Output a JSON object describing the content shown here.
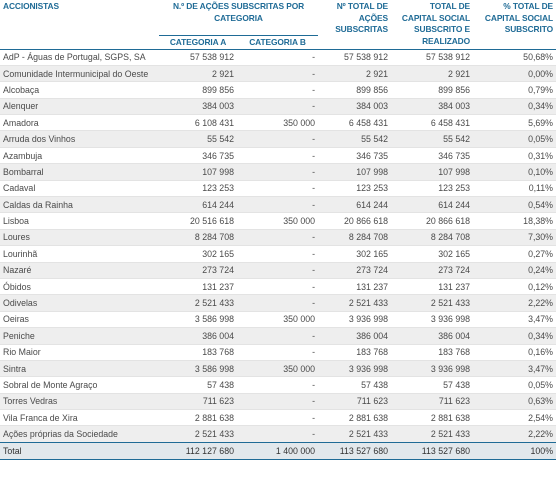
{
  "header": {
    "col_shareholders": "ACCIONISTAS",
    "col_shares_group": "N.º DE AÇÕES SUBSCRITAS POR CATEGORIA",
    "col_cat_a": "CATEGORIA A",
    "col_cat_b": "CATEGORIA B",
    "col_total_shares": "Nº TOTAL DE AÇÕES SUBSCRITAS",
    "col_total_capital": "TOTAL DE CAPITAL SOCIAL SUBSCRITO E REALIZADO",
    "col_percent": "% TOTAL DE CAPITAL SOCIAL SUBSCRITO"
  },
  "rows": [
    {
      "name": "AdP - Águas de Portugal, SGPS, SA",
      "cat_a": "57 538 912",
      "cat_b": "-",
      "total_shares": "57 538 912",
      "capital": "57 538 912",
      "percent": "50,68%"
    },
    {
      "name": "Comunidade Intermunicipal do Oeste",
      "cat_a": "2 921",
      "cat_b": "-",
      "total_shares": "2 921",
      "capital": "2 921",
      "percent": "0,00%"
    },
    {
      "name": "Alcobaça",
      "cat_a": "899 856",
      "cat_b": "-",
      "total_shares": "899 856",
      "capital": "899 856",
      "percent": "0,79%"
    },
    {
      "name": "Alenquer",
      "cat_a": "384 003",
      "cat_b": "-",
      "total_shares": "384 003",
      "capital": "384 003",
      "percent": "0,34%"
    },
    {
      "name": "Amadora",
      "cat_a": "6 108 431",
      "cat_b": "350 000",
      "total_shares": "6 458 431",
      "capital": "6 458 431",
      "percent": "5,69%"
    },
    {
      "name": "Arruda dos Vinhos",
      "cat_a": "55 542",
      "cat_b": "-",
      "total_shares": "55 542",
      "capital": "55 542",
      "percent": "0,05%"
    },
    {
      "name": "Azambuja",
      "cat_a": "346 735",
      "cat_b": "-",
      "total_shares": "346 735",
      "capital": "346 735",
      "percent": "0,31%"
    },
    {
      "name": "Bombarral",
      "cat_a": "107 998",
      "cat_b": "-",
      "total_shares": "107 998",
      "capital": "107 998",
      "percent": "0,10%"
    },
    {
      "name": "Cadaval",
      "cat_a": "123 253",
      "cat_b": "-",
      "total_shares": "123 253",
      "capital": "123 253",
      "percent": "0,11%"
    },
    {
      "name": "Caldas da Rainha",
      "cat_a": "614 244",
      "cat_b": "-",
      "total_shares": "614 244",
      "capital": "614 244",
      "percent": "0,54%"
    },
    {
      "name": "Lisboa",
      "cat_a": "20 516 618",
      "cat_b": "350 000",
      "total_shares": "20 866 618",
      "capital": "20 866 618",
      "percent": "18,38%"
    },
    {
      "name": "Loures",
      "cat_a": "8 284 708",
      "cat_b": "-",
      "total_shares": "8 284 708",
      "capital": "8 284 708",
      "percent": "7,30%"
    },
    {
      "name": "Lourinhã",
      "cat_a": "302 165",
      "cat_b": "-",
      "total_shares": "302 165",
      "capital": "302 165",
      "percent": "0,27%"
    },
    {
      "name": "Nazaré",
      "cat_a": "273 724",
      "cat_b": "-",
      "total_shares": "273 724",
      "capital": "273 724",
      "percent": "0,24%"
    },
    {
      "name": "Óbidos",
      "cat_a": "131 237",
      "cat_b": "-",
      "total_shares": "131 237",
      "capital": "131 237",
      "percent": "0,12%"
    },
    {
      "name": "Odivelas",
      "cat_a": "2 521 433",
      "cat_b": "-",
      "total_shares": "2 521 433",
      "capital": "2 521 433",
      "percent": "2,22%"
    },
    {
      "name": "Oeiras",
      "cat_a": "3 586 998",
      "cat_b": "350 000",
      "total_shares": "3 936 998",
      "capital": "3 936 998",
      "percent": "3,47%"
    },
    {
      "name": "Peniche",
      "cat_a": "386 004",
      "cat_b": "-",
      "total_shares": "386 004",
      "capital": "386 004",
      "percent": "0,34%"
    },
    {
      "name": "Rio Maior",
      "cat_a": "183 768",
      "cat_b": "-",
      "total_shares": "183 768",
      "capital": "183 768",
      "percent": "0,16%"
    },
    {
      "name": "Sintra",
      "cat_a": "3 586 998",
      "cat_b": "350 000",
      "total_shares": "3 936 998",
      "capital": "3 936 998",
      "percent": "3,47%"
    },
    {
      "name": "Sobral de Monte Agraço",
      "cat_a": "57 438",
      "cat_b": "-",
      "total_shares": "57 438",
      "capital": "57 438",
      "percent": "0,05%"
    },
    {
      "name": "Torres Vedras",
      "cat_a": "711 623",
      "cat_b": "-",
      "total_shares": "711 623",
      "capital": "711 623",
      "percent": "0,63%"
    },
    {
      "name": "Vila Franca de Xira",
      "cat_a": "2 881 638",
      "cat_b": "-",
      "total_shares": "2 881 638",
      "capital": "2 881 638",
      "percent": "2,54%"
    },
    {
      "name": "Ações próprias da Sociedade",
      "cat_a": "2 521 433",
      "cat_b": "-",
      "total_shares": "2 521 433",
      "capital": "2 521 433",
      "percent": "2,22%"
    }
  ],
  "total": {
    "name": "Total",
    "cat_a": "112 127 680",
    "cat_b": "1 400 000",
    "total_shares": "113 527 680",
    "capital": "113 527 680",
    "percent": "100%"
  },
  "colors": {
    "header_text": "#1f6b96",
    "row_shade": "#eeeeee",
    "total_bg": "#e2e8ec"
  }
}
